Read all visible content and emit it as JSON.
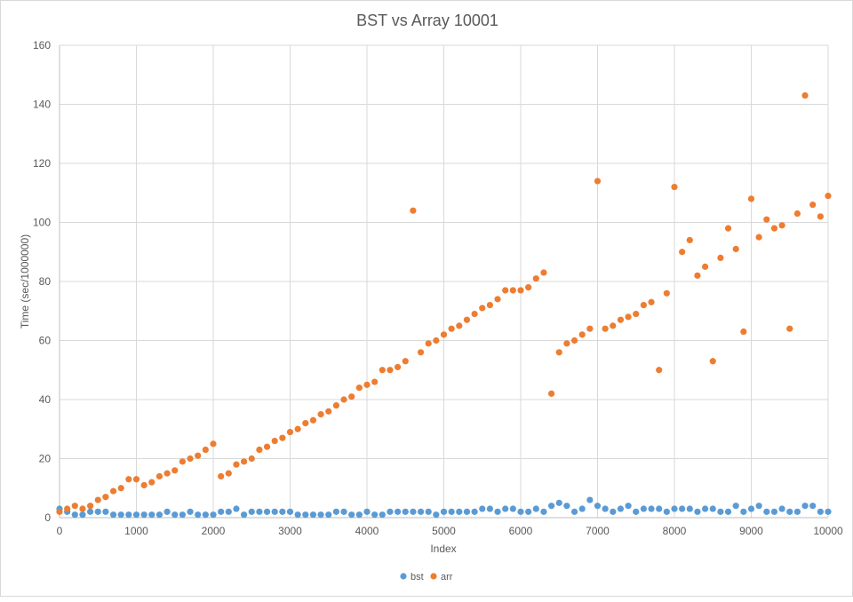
{
  "chart_data": {
    "type": "scatter",
    "title": "BST vs Array 10001",
    "xlabel": "Index",
    "ylabel": "Time (sec/1000000)",
    "xlim": [
      0,
      10000
    ],
    "ylim": [
      0,
      160
    ],
    "xticks": [
      0,
      1000,
      2000,
      3000,
      4000,
      5000,
      6000,
      7000,
      8000,
      9000,
      10000
    ],
    "yticks": [
      0,
      20,
      40,
      60,
      80,
      100,
      120,
      140,
      160
    ],
    "grid": true,
    "legend_position": "bottom",
    "series": [
      {
        "name": "bst",
        "color": "#5b9bd5",
        "x": [
          0,
          100,
          200,
          300,
          400,
          500,
          600,
          700,
          800,
          900,
          1000,
          1100,
          1200,
          1300,
          1400,
          1500,
          1600,
          1700,
          1800,
          1900,
          2000,
          2100,
          2200,
          2300,
          2400,
          2500,
          2600,
          2700,
          2800,
          2900,
          3000,
          3100,
          3200,
          3300,
          3400,
          3500,
          3600,
          3700,
          3800,
          3900,
          4000,
          4100,
          4200,
          4300,
          4400,
          4500,
          4600,
          4700,
          4800,
          4900,
          5000,
          5100,
          5200,
          5300,
          5400,
          5500,
          5600,
          5700,
          5800,
          5900,
          6000,
          6100,
          6200,
          6300,
          6400,
          6500,
          6600,
          6700,
          6800,
          6900,
          7000,
          7100,
          7200,
          7300,
          7400,
          7500,
          7600,
          7700,
          7800,
          7900,
          8000,
          8100,
          8200,
          8300,
          8400,
          8500,
          8600,
          8700,
          8800,
          8900,
          9000,
          9100,
          9200,
          9300,
          9400,
          9500,
          9600,
          9700,
          9800,
          9900,
          10000
        ],
        "y": [
          3,
          2,
          1,
          1,
          2,
          2,
          2,
          1,
          1,
          1,
          1,
          1,
          1,
          1,
          2,
          1,
          1,
          2,
          1,
          1,
          1,
          2,
          2,
          3,
          1,
          2,
          2,
          2,
          2,
          2,
          2,
          1,
          1,
          1,
          1,
          1,
          2,
          2,
          1,
          1,
          2,
          1,
          1,
          2,
          2,
          2,
          2,
          2,
          2,
          1,
          2,
          2,
          2,
          2,
          2,
          3,
          3,
          2,
          3,
          3,
          2,
          2,
          3,
          2,
          4,
          5,
          4,
          2,
          3,
          6,
          4,
          3,
          2,
          3,
          4,
          2,
          3,
          3,
          3,
          2,
          3,
          3,
          3,
          2,
          3,
          3,
          2,
          2,
          4,
          2,
          3,
          4,
          2,
          2,
          3,
          2,
          2,
          4,
          4,
          2,
          2
        ]
      },
      {
        "name": "arr",
        "color": "#ed7d31",
        "x": [
          0,
          100,
          200,
          300,
          400,
          500,
          600,
          700,
          800,
          900,
          1000,
          1100,
          1200,
          1300,
          1400,
          1500,
          1600,
          1700,
          1800,
          1900,
          2000,
          2100,
          2200,
          2300,
          2400,
          2500,
          2600,
          2700,
          2800,
          2900,
          3000,
          3100,
          3200,
          3300,
          3400,
          3500,
          3600,
          3700,
          3800,
          3900,
          4000,
          4100,
          4200,
          4300,
          4400,
          4500,
          4600,
          4700,
          4800,
          4900,
          5000,
          5100,
          5200,
          5300,
          5400,
          5500,
          5600,
          5700,
          5800,
          5900,
          6000,
          6100,
          6200,
          6300,
          6400,
          6500,
          6600,
          6700,
          6800,
          6900,
          7000,
          7100,
          7200,
          7300,
          7400,
          7500,
          7600,
          7700,
          7800,
          7900,
          8000,
          8100,
          8200,
          8300,
          8400,
          8500,
          8600,
          8700,
          8800,
          8900,
          9000,
          9100,
          9200,
          9300,
          9400,
          9500,
          9600,
          9700,
          9800,
          9900,
          10000
        ],
        "y": [
          2,
          3,
          4,
          3,
          4,
          6,
          7,
          9,
          10,
          13,
          13,
          11,
          12,
          14,
          15,
          16,
          19,
          20,
          21,
          23,
          25,
          14,
          15,
          18,
          19,
          20,
          23,
          24,
          26,
          27,
          29,
          30,
          32,
          33,
          35,
          36,
          38,
          40,
          41,
          44,
          45,
          46,
          50,
          50,
          51,
          53,
          104,
          56,
          59,
          60,
          62,
          64,
          65,
          67,
          69,
          71,
          72,
          74,
          77,
          77,
          77,
          78,
          81,
          83,
          42,
          56,
          59,
          60,
          62,
          64,
          114,
          64,
          65,
          67,
          68,
          69,
          72,
          73,
          50,
          76,
          112,
          90,
          94,
          82,
          85,
          53,
          88,
          98,
          91,
          63,
          108,
          95,
          101,
          98,
          99,
          64,
          103,
          143,
          106,
          102,
          109
        ]
      }
    ]
  }
}
